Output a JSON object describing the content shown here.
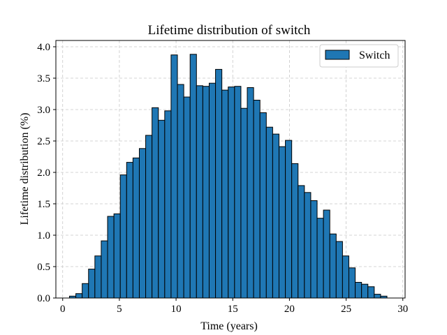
{
  "chart_data": {
    "type": "bar",
    "title": "Lifetime distribution of switch",
    "xlabel": "Time (years)",
    "ylabel": "Lifetime distribution (%)",
    "xlim": [
      -0.6,
      30.2
    ],
    "ylim": [
      0,
      4.1
    ],
    "xticks": [
      0,
      5,
      10,
      15,
      20,
      25,
      30
    ],
    "yticks": [
      0.0,
      0.5,
      1.0,
      1.5,
      2.0,
      2.5,
      3.0,
      3.5,
      4.0
    ],
    "ytick_labels": [
      "0.0",
      "0.5",
      "1.0",
      "1.5",
      "2.0",
      "2.5",
      "3.0",
      "3.5",
      "4.0"
    ],
    "grid": true,
    "legend_position": "top-right",
    "bar_color": "#1f77b4",
    "bins": {
      "start": 0.6,
      "width": 0.56,
      "values": [
        0.03,
        0.07,
        0.23,
        0.46,
        0.67,
        0.91,
        1.3,
        1.34,
        1.96,
        2.16,
        2.23,
        2.38,
        2.59,
        3.03,
        2.83,
        2.98,
        3.87,
        3.4,
        3.2,
        3.88,
        3.38,
        3.37,
        3.42,
        3.64,
        3.31,
        3.36,
        3.37,
        3.02,
        3.35,
        3.15,
        2.95,
        2.72,
        2.61,
        2.41,
        2.51,
        2.14,
        1.79,
        1.68,
        1.55,
        1.27,
        1.4,
        1.02,
        0.9,
        0.67,
        0.48,
        0.25,
        0.22,
        0.18,
        0.06,
        0.03
      ]
    },
    "series": [
      {
        "name": "Switch",
        "color": "#1f77b4"
      }
    ]
  }
}
